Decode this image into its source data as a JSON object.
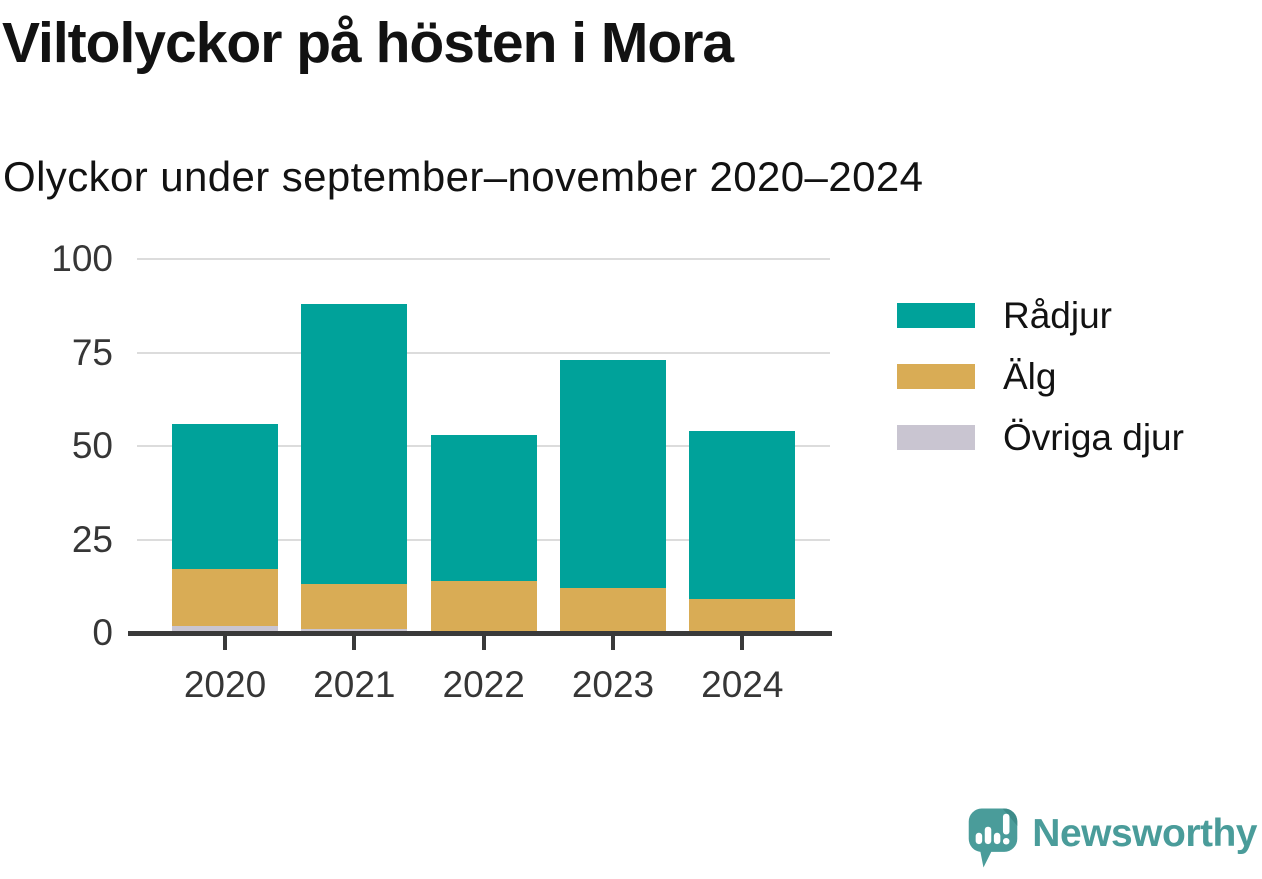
{
  "header": {
    "title": "Viltolyckor på hösten i Mora",
    "subtitle": "Olyckor under september–november 2020–2024"
  },
  "chart_data": {
    "type": "bar",
    "stacked": true,
    "title": "Viltolyckor på hösten i Mora",
    "subtitle": "Olyckor under september–november 2020–2024",
    "xlabel": "",
    "ylabel": "",
    "categories": [
      "2020",
      "2021",
      "2022",
      "2023",
      "2024"
    ],
    "series": [
      {
        "name": "Rådjur",
        "color": "#00a29a",
        "values": [
          39,
          75,
          39,
          61,
          45
        ]
      },
      {
        "name": "Älg",
        "color": "#d9ac55",
        "values": [
          15,
          12,
          14,
          12,
          9
        ]
      },
      {
        "name": "Övriga djur",
        "color": "#c9c5d1",
        "values": [
          2,
          1,
          0,
          0,
          0
        ]
      }
    ],
    "stack_order_bottom_to_top": [
      "Övriga djur",
      "Älg",
      "Rådjur"
    ],
    "totals": [
      56,
      88,
      53,
      73,
      54
    ],
    "ylim": [
      0,
      100
    ],
    "yticks": [
      0,
      25,
      50,
      75,
      100
    ],
    "grid": true,
    "legend_position": "right"
  },
  "legend": {
    "items": [
      {
        "label": "Rådjur",
        "color": "#00a29a"
      },
      {
        "label": "Älg",
        "color": "#d9ac55"
      },
      {
        "label": "Övriga djur",
        "color": "#c9c5d1"
      }
    ]
  },
  "footer": {
    "brand": "Newsworthy",
    "logo_icon": "speech-bubble-bar-chart-exclamation-icon",
    "brand_color": "#4a9c9a",
    "brand_color_dark": "#3d8b89"
  },
  "colors": {
    "background": "#ffffff",
    "gridline": "#dcdcdc",
    "axis": "#3a3a3a",
    "tick_text": "#363636",
    "text": "#121212"
  }
}
